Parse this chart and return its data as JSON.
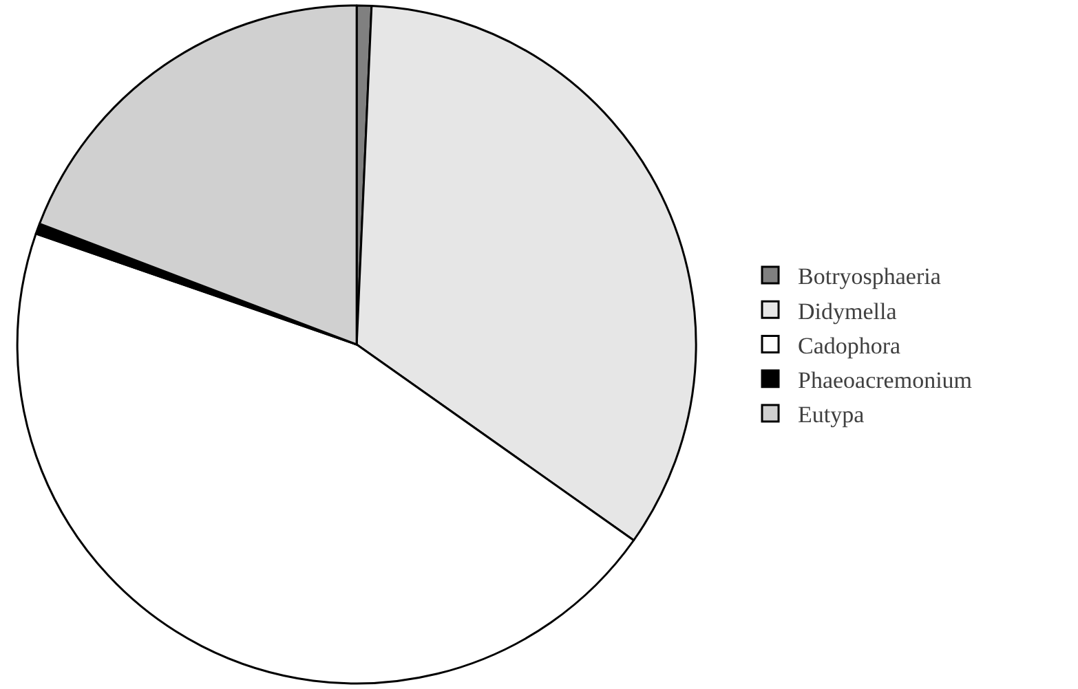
{
  "chart_data": {
    "type": "pie",
    "categories": [
      "Botryosphaeria",
      "Didymella",
      "Cadophora",
      "Phaeoacremonium",
      "Eutypa"
    ],
    "values": [
      0.7,
      34.1,
      45.5,
      0.5,
      19.2
    ],
    "colors": [
      "#808080",
      "#e6e6e6",
      "#ffffff",
      "#000000",
      "#d0d0d0"
    ],
    "legend": "right"
  }
}
